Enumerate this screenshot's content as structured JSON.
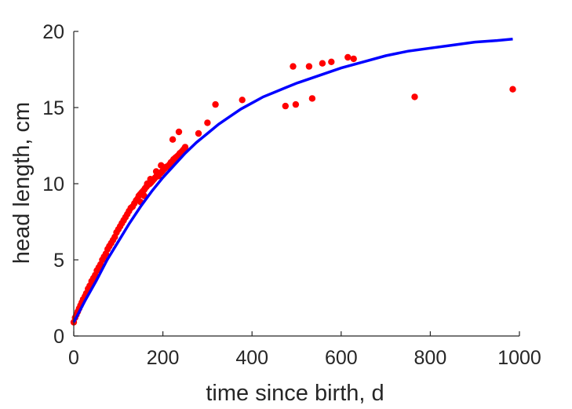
{
  "chart_data": {
    "type": "scatter",
    "xlabel": "time since birth, d",
    "ylabel": "head length, cm",
    "xlim": [
      0,
      1000
    ],
    "ylim": [
      0,
      20
    ],
    "xticks": [
      0,
      200,
      400,
      600,
      800,
      1000
    ],
    "yticks": [
      0,
      5,
      10,
      15,
      20
    ],
    "grid": false,
    "box": false,
    "colors": {
      "points": "#ff0000",
      "curve": "#0000ff",
      "axes": "#262626"
    },
    "series": [
      {
        "kind": "points",
        "x": [
          0,
          3,
          6,
          9,
          12,
          15,
          18,
          21,
          25,
          28,
          32,
          36,
          40,
          44,
          48,
          52,
          56,
          60,
          64,
          68,
          72,
          76,
          80,
          84,
          88,
          92,
          96,
          100,
          104,
          108,
          112,
          116,
          120,
          124,
          128,
          132,
          136,
          140,
          143,
          146,
          149,
          152,
          155,
          158,
          160,
          163,
          166,
          168,
          171,
          174,
          177,
          180,
          183,
          186,
          189,
          192,
          195,
          198,
          201,
          204,
          207,
          210,
          213,
          216,
          218,
          220,
          222,
          224,
          226,
          228,
          230,
          232,
          234,
          236,
          238,
          240,
          242,
          245,
          248,
          250,
          150,
          158,
          165,
          172,
          185,
          190,
          196,
          222,
          236,
          280,
          300,
          318,
          378,
          475,
          492,
          498,
          528,
          535,
          558,
          578,
          615,
          628,
          765,
          985
        ],
        "y": [
          0.9,
          1.2,
          1.4,
          1.6,
          1.8,
          2.0,
          2.2,
          2.4,
          2.6,
          2.8,
          3.1,
          3.3,
          3.6,
          3.8,
          4.0,
          4.3,
          4.5,
          4.7,
          5.0,
          5.2,
          5.4,
          5.7,
          5.9,
          6.1,
          6.3,
          6.5,
          6.8,
          7.0,
          7.2,
          7.4,
          7.6,
          7.8,
          8.0,
          8.2,
          8.4,
          8.5,
          8.7,
          8.9,
          9.0,
          9.2,
          9.3,
          9.4,
          9.5,
          9.6,
          9.7,
          9.8,
          9.9,
          10.0,
          10.0,
          10.1,
          10.2,
          10.3,
          10.4,
          10.5,
          10.6,
          10.7,
          10.7,
          10.8,
          10.9,
          11.0,
          11.1,
          11.1,
          11.2,
          11.3,
          11.4,
          11.4,
          11.5,
          11.6,
          11.6,
          11.7,
          11.7,
          11.8,
          11.8,
          11.9,
          12.0,
          12.0,
          12.1,
          12.2,
          12.3,
          12.4,
          8.8,
          9.2,
          10.0,
          10.3,
          10.8,
          10.5,
          11.2,
          12.9,
          13.4,
          13.3,
          14.0,
          15.2,
          15.5,
          15.1,
          17.7,
          15.2,
          17.7,
          15.6,
          17.9,
          18.0,
          18.3,
          18.2,
          15.7,
          16.2
        ]
      },
      {
        "kind": "curve",
        "x": [
          0,
          25,
          50,
          75,
          100,
          125,
          150,
          175,
          200,
          225,
          250,
          275,
          300,
          325,
          350,
          375,
          400,
          425,
          450,
          475,
          500,
          550,
          600,
          650,
          700,
          750,
          800,
          850,
          900,
          950,
          985
        ],
        "y": [
          0.9,
          2.3,
          3.6,
          5.0,
          6.2,
          7.4,
          8.5,
          9.5,
          10.4,
          11.2,
          12.0,
          12.7,
          13.3,
          13.9,
          14.4,
          14.9,
          15.3,
          15.7,
          16.0,
          16.3,
          16.6,
          17.1,
          17.6,
          18.0,
          18.4,
          18.7,
          18.9,
          19.1,
          19.3,
          19.4,
          19.5
        ]
      }
    ]
  }
}
